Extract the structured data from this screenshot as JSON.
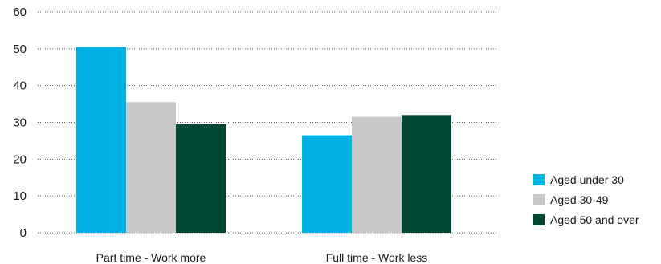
{
  "chart_data": {
    "type": "bar",
    "categories": [
      "Part time - Work more",
      "Full time - Work less"
    ],
    "series": [
      {
        "name": "Aged under 30",
        "values": [
          50.5,
          26.5
        ],
        "color": "#00b2e3"
      },
      {
        "name": "Aged 30-49",
        "values": [
          35.5,
          31.5
        ],
        "color": "#c8c8c8"
      },
      {
        "name": "Aged 50 and over",
        "values": [
          29.5,
          32.0
        ],
        "color": "#004734"
      }
    ],
    "yticks": [
      "0",
      "10",
      "20",
      "30",
      "40",
      "50",
      "60"
    ],
    "ylim": [
      0,
      60
    ],
    "grid": true,
    "legend_position": "bottom-right",
    "title": "",
    "xlabel": "",
    "ylabel": ""
  }
}
